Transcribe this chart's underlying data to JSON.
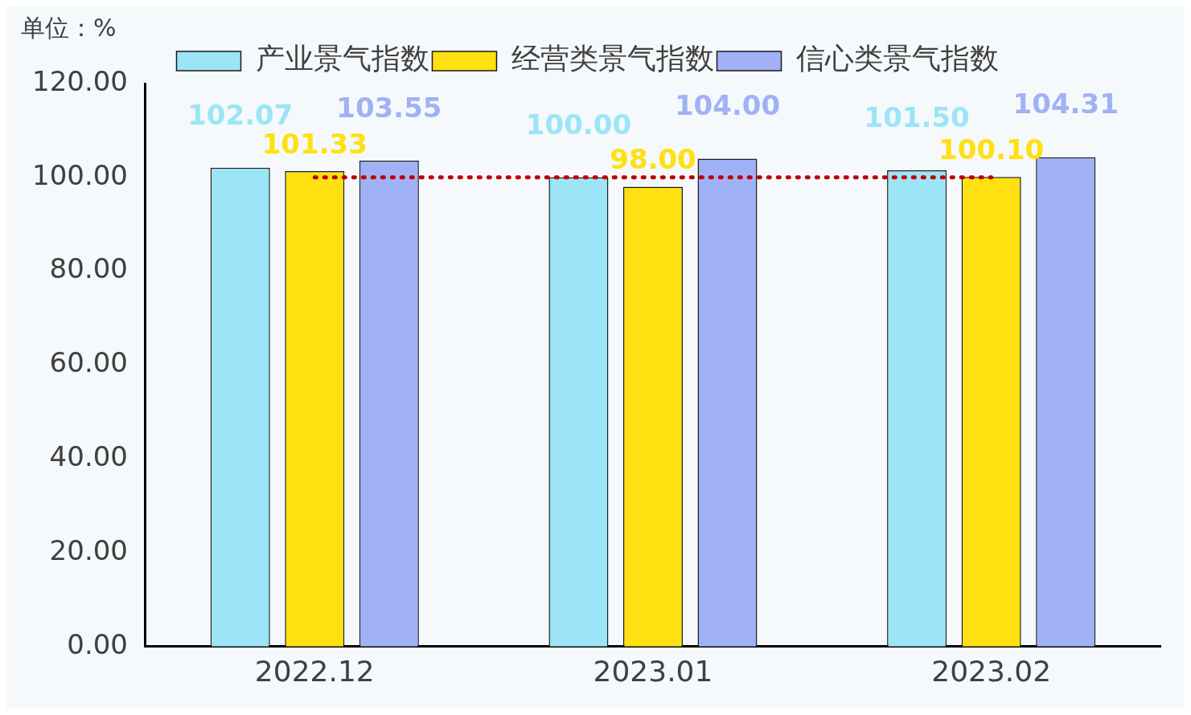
{
  "chart_data": {
    "type": "bar",
    "ylabel": "单位：%",
    "categories": [
      "2022.12",
      "2023.01",
      "2023.02"
    ],
    "series": [
      {
        "name": "产业景气指数",
        "color": "#9be5f7",
        "values": [
          102.07,
          100.0,
          101.5
        ],
        "value_labels": [
          "102.07",
          "100.00",
          "101.50"
        ]
      },
      {
        "name": "经营类景气指数",
        "color": "#ffe010",
        "values": [
          101.33,
          98.0,
          100.1
        ],
        "value_labels": [
          "101.33",
          "98.00",
          "100.10"
        ]
      },
      {
        "name": "信心类景气指数",
        "color": "#a0b2f5",
        "values": [
          103.55,
          104.0,
          104.31
        ],
        "value_labels": [
          "103.55",
          "104.00",
          "104.31"
        ]
      }
    ],
    "ylim": [
      0,
      120
    ],
    "yticks": [
      {
        "value": 0,
        "label": "0.00"
      },
      {
        "value": 20,
        "label": "20.00"
      },
      {
        "value": 40,
        "label": "40.00"
      },
      {
        "value": 60,
        "label": "60.00"
      },
      {
        "value": 80,
        "label": "80.00"
      },
      {
        "value": 100,
        "label": "100.00"
      },
      {
        "value": 120,
        "label": "120.00"
      }
    ],
    "grid": false,
    "legend": "top",
    "ref_lines": [
      {
        "axis": "y",
        "value": 100,
        "color": "#c00000",
        "line_style": "dotted"
      }
    ]
  }
}
